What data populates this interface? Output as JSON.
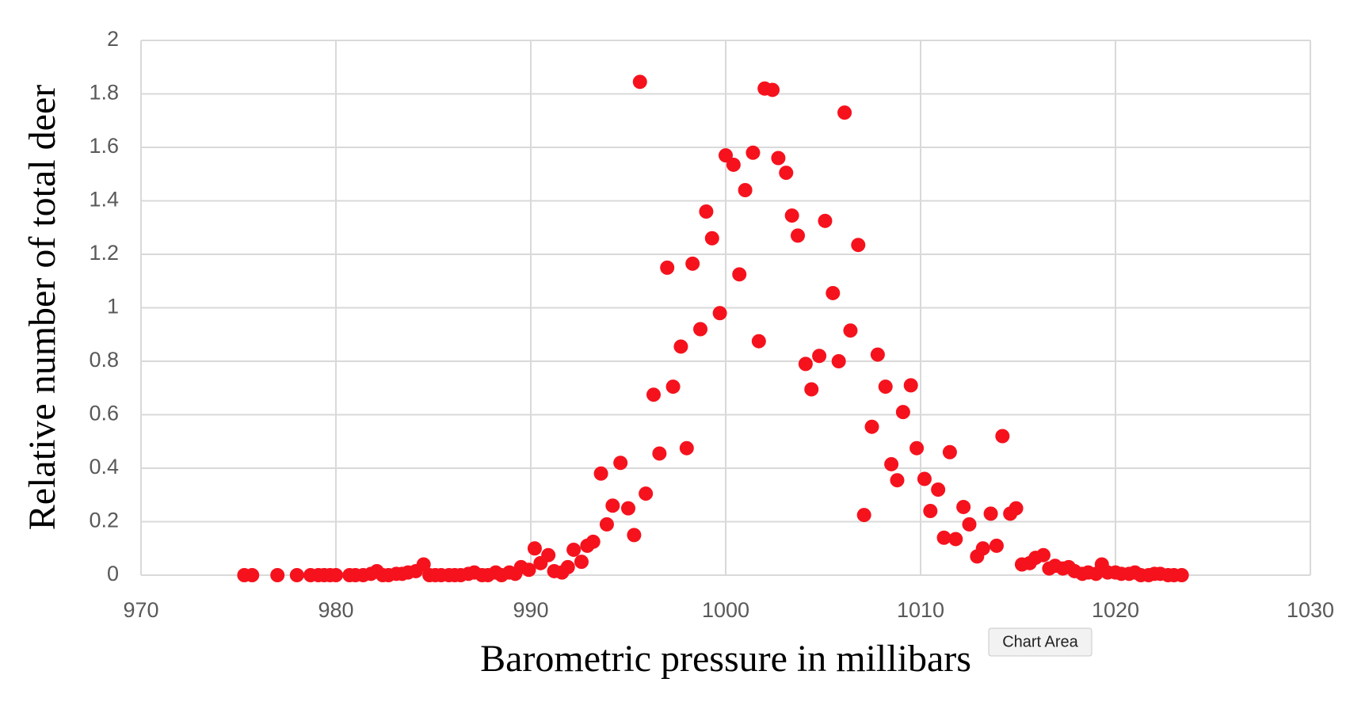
{
  "chart_data": {
    "type": "scatter",
    "xlabel": "Barometric pressure in millibars",
    "ylabel": "Relative number of total deer",
    "tooltip": "Chart Area",
    "color": "#f5121d",
    "grid": true,
    "xlim": [
      970,
      1030
    ],
    "xticks": [
      970,
      980,
      990,
      1000,
      1010,
      1020,
      1030
    ],
    "ylim": [
      0,
      2
    ],
    "yticks": [
      0,
      0.2,
      0.4,
      0.6,
      0.8,
      1,
      1.2,
      1.4,
      1.6,
      1.8,
      2
    ],
    "x": [
      975.3,
      975.7,
      977.0,
      978.0,
      978.7,
      979.1,
      979.4,
      979.7,
      980.0,
      980.7,
      981.0,
      981.4,
      981.8,
      982.1,
      982.4,
      982.7,
      983.1,
      983.4,
      983.7,
      984.1,
      984.5,
      984.8,
      985.1,
      985.4,
      985.8,
      986.1,
      986.4,
      986.8,
      987.1,
      987.5,
      987.8,
      988.2,
      988.5,
      988.9,
      989.2,
      989.5,
      989.9,
      990.2,
      990.5,
      990.9,
      991.2,
      991.6,
      991.9,
      992.2,
      992.6,
      992.9,
      993.2,
      993.6,
      993.9,
      994.2,
      994.6,
      995.0,
      995.3,
      995.6,
      995.9,
      996.3,
      996.6,
      997.0,
      997.3,
      997.7,
      998.0,
      998.3,
      998.7,
      999.0,
      999.3,
      999.7,
      1000.0,
      1000.4,
      1000.7,
      1001.0,
      1001.4,
      1001.7,
      1002.0,
      1002.4,
      1002.7,
      1003.1,
      1003.4,
      1003.7,
      1004.1,
      1004.4,
      1004.8,
      1005.1,
      1005.5,
      1005.8,
      1006.1,
      1006.4,
      1006.8,
      1007.1,
      1007.5,
      1007.8,
      1008.2,
      1008.5,
      1008.8,
      1009.1,
      1009.5,
      1009.8,
      1010.2,
      1010.5,
      1010.9,
      1011.2,
      1011.5,
      1011.8,
      1012.2,
      1012.5,
      1012.9,
      1013.2,
      1013.6,
      1013.9,
      1014.2,
      1014.6,
      1014.9,
      1015.2,
      1015.6,
      1015.9,
      1016.3,
      1016.6,
      1016.9,
      1017.3,
      1017.6,
      1017.9,
      1018.3,
      1018.6,
      1019.0,
      1019.3,
      1019.6,
      1020.0,
      1020.3,
      1020.7,
      1021.0,
      1021.3,
      1021.7,
      1022.0,
      1022.3,
      1022.7,
      1023.0,
      1023.4
    ],
    "values": [
      0,
      0,
      0,
      0,
      0,
      0,
      0,
      0,
      0,
      0,
      0,
      0,
      0.005,
      0.015,
      0,
      0,
      0.005,
      0.005,
      0.01,
      0.015,
      0.04,
      0,
      0,
      0,
      0,
      0,
      0,
      0.005,
      0.01,
      0,
      0,
      0.01,
      0,
      0.01,
      0.005,
      0.03,
      0.02,
      0.1,
      0.045,
      0.075,
      0.015,
      0.01,
      0.03,
      0.095,
      0.05,
      0.11,
      0.125,
      0.38,
      0.19,
      0.26,
      0.42,
      0.25,
      0.15,
      1.845,
      0.305,
      0.675,
      0.455,
      1.15,
      0.705,
      0.855,
      0.475,
      1.165,
      0.92,
      1.36,
      1.26,
      0.98,
      1.57,
      1.535,
      1.125,
      1.44,
      1.58,
      0.875,
      1.82,
      1.815,
      1.56,
      1.505,
      1.345,
      1.27,
      0.79,
      0.695,
      0.82,
      1.325,
      1.055,
      0.8,
      1.73,
      0.915,
      1.235,
      0.225,
      0.555,
      0.825,
      0.705,
      0.415,
      0.355,
      0.61,
      0.71,
      0.475,
      0.36,
      0.24,
      0.32,
      0.14,
      0.46,
      0.135,
      0.255,
      0.19,
      0.07,
      0.1,
      0.23,
      0.11,
      0.52,
      0.23,
      0.25,
      0.04,
      0.045,
      0.065,
      0.075,
      0.025,
      0.035,
      0.025,
      0.03,
      0.015,
      0.005,
      0.01,
      0.005,
      0.04,
      0.01,
      0.01,
      0.005,
      0.005,
      0.01,
      0,
      0,
      0.005,
      0.005,
      0,
      0,
      0
    ]
  }
}
